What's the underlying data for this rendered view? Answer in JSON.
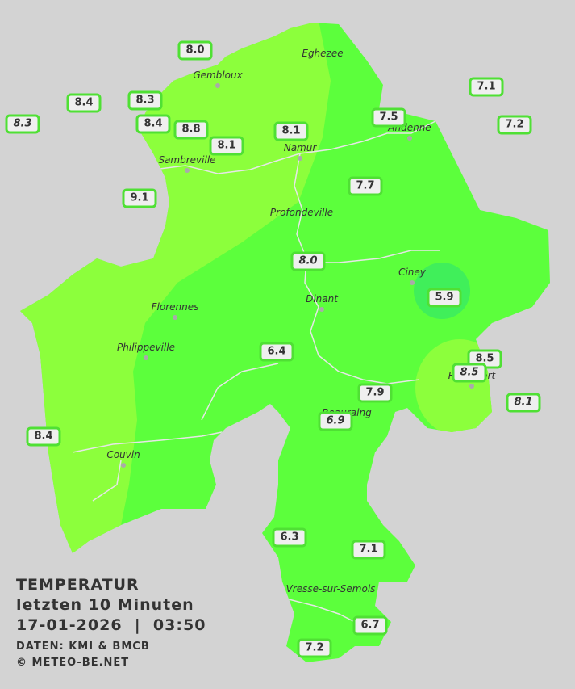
{
  "title": {
    "heading": "TEMPERATUR",
    "period": "letzten 10 Minuten",
    "timestamp": "17-01-2026  |  03:50",
    "source": "DATEN: KMI & BMCB",
    "copyright": "© METEO-BE.NET"
  },
  "towns": [
    {
      "label": "Eghezee"
    },
    {
      "label": "Gembloux"
    },
    {
      "label": "Andenne"
    },
    {
      "label": "Namur"
    },
    {
      "label": "Sambreville"
    },
    {
      "label": "Profondeville"
    },
    {
      "label": "Ciney"
    },
    {
      "label": "Dinant"
    },
    {
      "label": "Florennes"
    },
    {
      "label": "Philippeville"
    },
    {
      "label": "Rochefort"
    },
    {
      "label": "Beauraing"
    },
    {
      "label": "Couvin"
    },
    {
      "label": "Vresse-sur-Semois"
    }
  ],
  "stations": [
    {
      "value": "8.0",
      "italic": false
    },
    {
      "value": "8.4",
      "italic": false
    },
    {
      "value": "8.3",
      "italic": false
    },
    {
      "value": "8.3",
      "italic": true
    },
    {
      "value": "8.4",
      "italic": false
    },
    {
      "value": "8.8",
      "italic": false
    },
    {
      "value": "8.1",
      "italic": false
    },
    {
      "value": "8.1",
      "italic": false
    },
    {
      "value": "7.5",
      "italic": false
    },
    {
      "value": "7.1",
      "italic": false
    },
    {
      "value": "7.2",
      "italic": false
    },
    {
      "value": "9.1",
      "italic": false
    },
    {
      "value": "7.7",
      "italic": false
    },
    {
      "value": "8.0",
      "italic": true
    },
    {
      "value": "5.9",
      "italic": false
    },
    {
      "value": "6.4",
      "italic": false
    },
    {
      "value": "8.5",
      "italic": false
    },
    {
      "value": "8.5",
      "italic": true
    },
    {
      "value": "8.1",
      "italic": true
    },
    {
      "value": "7.9",
      "italic": false
    },
    {
      "value": "6.9",
      "italic": true
    },
    {
      "value": "8.4",
      "italic": false
    },
    {
      "value": "6.3",
      "italic": false
    },
    {
      "value": "7.1",
      "italic": false
    },
    {
      "value": "6.7",
      "italic": false
    },
    {
      "value": "7.2",
      "italic": false
    }
  ]
}
